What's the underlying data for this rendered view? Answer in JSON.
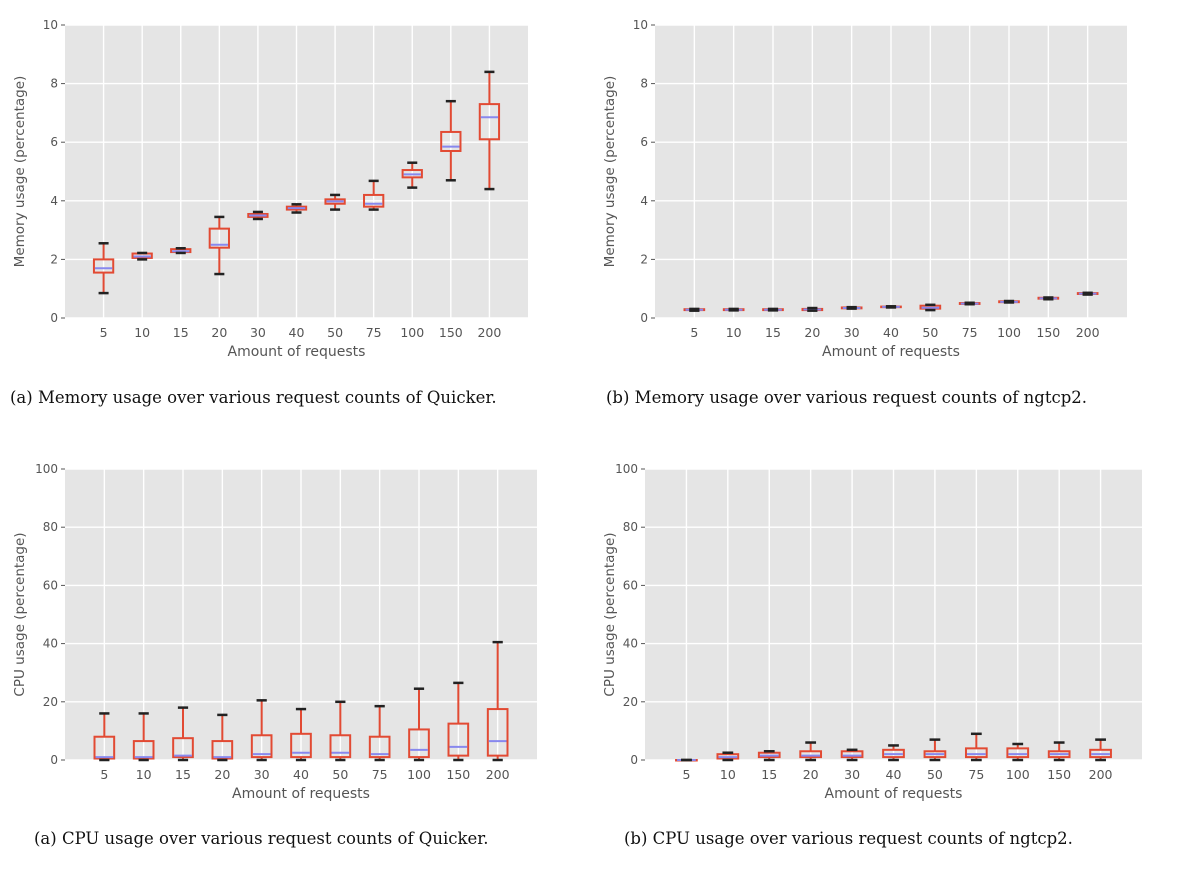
{
  "chart_data": [
    {
      "type": "box",
      "xlabel": "Amount of requests",
      "ylabel": "Memory usage (percentage)",
      "ylim": [
        0,
        10
      ],
      "yticks": [
        0,
        2,
        4,
        6,
        8,
        10
      ],
      "categories": [
        "5",
        "10",
        "15",
        "20",
        "30",
        "40",
        "50",
        "75",
        "100",
        "150",
        "200"
      ],
      "boxes": [
        {
          "min": 0.85,
          "q1": 1.55,
          "median": 1.7,
          "q3": 2.0,
          "max": 2.55
        },
        {
          "min": 2.0,
          "q1": 2.05,
          "median": 2.1,
          "q3": 2.2,
          "max": 2.22
        },
        {
          "min": 2.22,
          "q1": 2.25,
          "median": 2.28,
          "q3": 2.35,
          "max": 2.38
        },
        {
          "min": 1.5,
          "q1": 2.4,
          "median": 2.5,
          "q3": 3.05,
          "max": 3.45
        },
        {
          "min": 3.38,
          "q1": 3.45,
          "median": 3.5,
          "q3": 3.55,
          "max": 3.62
        },
        {
          "min": 3.6,
          "q1": 3.7,
          "median": 3.75,
          "q3": 3.8,
          "max": 3.88
        },
        {
          "min": 3.7,
          "q1": 3.9,
          "median": 3.98,
          "q3": 4.05,
          "max": 4.2
        },
        {
          "min": 3.7,
          "q1": 3.8,
          "median": 3.9,
          "q3": 4.2,
          "max": 4.68
        },
        {
          "min": 4.45,
          "q1": 4.8,
          "median": 4.9,
          "q3": 5.05,
          "max": 5.3
        },
        {
          "min": 4.7,
          "q1": 5.7,
          "median": 5.85,
          "q3": 6.35,
          "max": 7.4
        },
        {
          "min": 4.4,
          "q1": 6.1,
          "median": 6.85,
          "q3": 7.3,
          "max": 8.4
        }
      ],
      "caption": "(a) Memory usage over various request counts of Quicker."
    },
    {
      "type": "box",
      "xlabel": "Amount of requests",
      "ylabel": "Memory usage (percentage)",
      "ylim": [
        0,
        10
      ],
      "yticks": [
        0,
        2,
        4,
        6,
        8,
        10
      ],
      "categories": [
        "5",
        "10",
        "15",
        "20",
        "30",
        "40",
        "50",
        "75",
        "100",
        "150",
        "200"
      ],
      "boxes": [
        {
          "min": 0.25,
          "q1": 0.27,
          "median": 0.28,
          "q3": 0.3,
          "max": 0.31
        },
        {
          "min": 0.26,
          "q1": 0.27,
          "median": 0.28,
          "q3": 0.3,
          "max": 0.31
        },
        {
          "min": 0.26,
          "q1": 0.27,
          "median": 0.28,
          "q3": 0.3,
          "max": 0.31
        },
        {
          "min": 0.25,
          "q1": 0.27,
          "median": 0.29,
          "q3": 0.31,
          "max": 0.34
        },
        {
          "min": 0.32,
          "q1": 0.33,
          "median": 0.34,
          "q3": 0.36,
          "max": 0.37
        },
        {
          "min": 0.36,
          "q1": 0.37,
          "median": 0.38,
          "q3": 0.39,
          "max": 0.4
        },
        {
          "min": 0.27,
          "q1": 0.32,
          "median": 0.35,
          "q3": 0.42,
          "max": 0.45
        },
        {
          "min": 0.47,
          "q1": 0.48,
          "median": 0.49,
          "q3": 0.51,
          "max": 0.52
        },
        {
          "min": 0.53,
          "q1": 0.54,
          "median": 0.55,
          "q3": 0.57,
          "max": 0.58
        },
        {
          "min": 0.64,
          "q1": 0.66,
          "median": 0.67,
          "q3": 0.69,
          "max": 0.7
        },
        {
          "min": 0.8,
          "q1": 0.82,
          "median": 0.83,
          "q3": 0.85,
          "max": 0.86
        }
      ],
      "caption": "(b) Memory usage over various request counts of ngtcp2."
    },
    {
      "type": "box",
      "xlabel": "Amount of requests",
      "ylabel": "CPU usage (percentage)",
      "ylim": [
        0,
        100
      ],
      "yticks": [
        0,
        20,
        40,
        60,
        80,
        100
      ],
      "categories": [
        "5",
        "10",
        "15",
        "20",
        "30",
        "40",
        "50",
        "75",
        "100",
        "150",
        "200"
      ],
      "boxes": [
        {
          "min": 0,
          "q1": 0.5,
          "median": 1,
          "q3": 8,
          "max": 16
        },
        {
          "min": 0,
          "q1": 0.5,
          "median": 1,
          "q3": 6.5,
          "max": 16
        },
        {
          "min": 0,
          "q1": 1,
          "median": 1.5,
          "q3": 7.5,
          "max": 18
        },
        {
          "min": 0,
          "q1": 0.5,
          "median": 1,
          "q3": 6.5,
          "max": 15.5
        },
        {
          "min": 0,
          "q1": 1,
          "median": 2,
          "q3": 8.5,
          "max": 20.5
        },
        {
          "min": 0,
          "q1": 1,
          "median": 2.5,
          "q3": 9,
          "max": 17.5
        },
        {
          "min": 0,
          "q1": 1,
          "median": 2.5,
          "q3": 8.5,
          "max": 20
        },
        {
          "min": 0,
          "q1": 1,
          "median": 2,
          "q3": 8,
          "max": 18.5
        },
        {
          "min": 0,
          "q1": 1,
          "median": 3.5,
          "q3": 10.5,
          "max": 24.5
        },
        {
          "min": 0,
          "q1": 1.5,
          "median": 4.5,
          "q3": 12.5,
          "max": 26.5
        },
        {
          "min": 0,
          "q1": 1.5,
          "median": 6.5,
          "q3": 17.5,
          "max": 40.5
        }
      ],
      "caption": "(a) CPU usage over various request counts of Quicker."
    },
    {
      "type": "box",
      "xlabel": "Amount of requests",
      "ylabel": "CPU usage (percentage)",
      "ylim": [
        0,
        100
      ],
      "yticks": [
        0,
        20,
        40,
        60,
        80,
        100
      ],
      "categories": [
        "5",
        "10",
        "15",
        "20",
        "30",
        "40",
        "50",
        "75",
        "100",
        "150",
        "200"
      ],
      "boxes": [
        {
          "min": 0,
          "q1": 0,
          "median": 0,
          "q3": 0,
          "max": 0
        },
        {
          "min": 0,
          "q1": 0.5,
          "median": 1,
          "q3": 2,
          "max": 2.5
        },
        {
          "min": 0,
          "q1": 1,
          "median": 1.5,
          "q3": 2.5,
          "max": 3
        },
        {
          "min": 0,
          "q1": 1,
          "median": 1.5,
          "q3": 3,
          "max": 6
        },
        {
          "min": 0,
          "q1": 1,
          "median": 1.5,
          "q3": 3,
          "max": 3.5
        },
        {
          "min": 0,
          "q1": 1,
          "median": 2,
          "q3": 3.5,
          "max": 5
        },
        {
          "min": 0,
          "q1": 1,
          "median": 2,
          "q3": 3,
          "max": 7
        },
        {
          "min": 0,
          "q1": 1,
          "median": 2,
          "q3": 4,
          "max": 9
        },
        {
          "min": 0,
          "q1": 1,
          "median": 2,
          "q3": 4,
          "max": 5.5
        },
        {
          "min": 0,
          "q1": 1,
          "median": 2,
          "q3": 3,
          "max": 6
        },
        {
          "min": 0,
          "q1": 1,
          "median": 2,
          "q3": 3.5,
          "max": 7
        }
      ],
      "caption": "(b) CPU usage over various request counts of ngtcp2."
    }
  ],
  "colors": {
    "plot_background": "#e5e5e5",
    "grid": "#ffffff",
    "box": "#e24a33",
    "median": "#8888ee",
    "whisker_cap": "#222222",
    "axis_text": "#555555"
  }
}
